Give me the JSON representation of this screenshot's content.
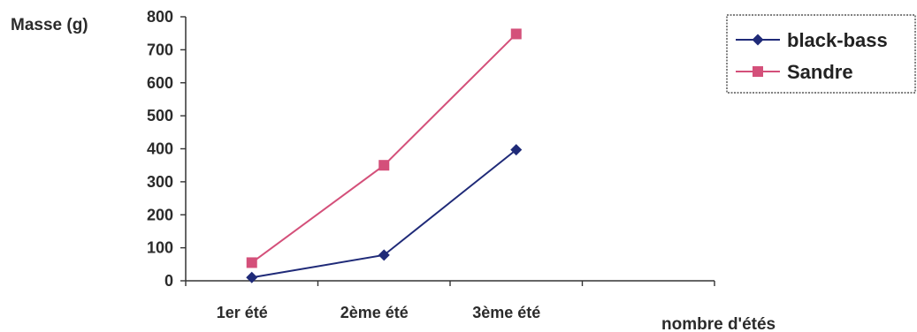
{
  "chart_data": {
    "type": "line",
    "ylabel": "Masse (g)",
    "xlabel": "nombre d'étés",
    "categories": [
      "1er été",
      "2ème été",
      "3ème été"
    ],
    "ylim": [
      0,
      800
    ],
    "yticks": [
      0,
      100,
      200,
      300,
      400,
      500,
      600,
      700,
      800
    ],
    "grid": false,
    "legend_position": "right",
    "series": [
      {
        "name": "black-bass",
        "values": [
          10,
          78,
          397
        ],
        "color": "#1f2a78",
        "marker": "diamond"
      },
      {
        "name": "Sandre",
        "values": [
          55,
          350,
          748
        ],
        "color": "#d4507a",
        "marker": "square"
      }
    ]
  }
}
